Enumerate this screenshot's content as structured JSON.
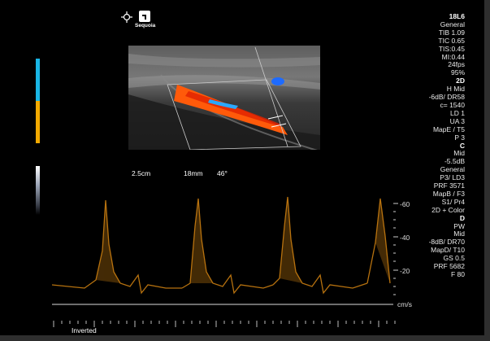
{
  "logo": {
    "brand": "Sequoia"
  },
  "params": [
    {
      "text": "18L6",
      "hdr": true
    },
    {
      "text": "General"
    },
    {
      "text": "TIB 1.09"
    },
    {
      "text": "TIC 0.65"
    },
    {
      "text": "TIS:0.45"
    },
    {
      "text": "MI:0.44"
    },
    {
      "text": "24fps"
    },
    {
      "text": "95%"
    },
    {
      "text": "2D",
      "hdr": true
    },
    {
      "text": "H Mid"
    },
    {
      "text": "-6dB/ DR58"
    },
    {
      "text": "c= 1540"
    },
    {
      "text": "LD 1"
    },
    {
      "text": "UA 3"
    },
    {
      "text": "MapE / T5"
    },
    {
      "text": "P 3"
    },
    {
      "text": "C",
      "hdr": true
    },
    {
      "text": "Mid"
    },
    {
      "text": "-5.5dB"
    },
    {
      "text": "General"
    },
    {
      "text": "P3/ LD3"
    },
    {
      "text": "PRF 3571"
    },
    {
      "text": "MapB / F3"
    },
    {
      "text": "S1/ Pr4"
    },
    {
      "text": "2D + Color"
    },
    {
      "text": "D",
      "hdr": true
    },
    {
      "text": "PW"
    },
    {
      "text": "Mid"
    },
    {
      "text": "-8dB/ DR70"
    },
    {
      "text": "MapD/ T10"
    },
    {
      "text": "GS 0.5"
    },
    {
      "text": "PRF 5682"
    },
    {
      "text": "F 80"
    }
  ],
  "doppler": {
    "gate_depth": "2.5cm",
    "gate_size": "18mm",
    "angle": "46°",
    "scale_labels": [
      "-60",
      "-40",
      "-20"
    ],
    "unit": "cm/s",
    "invert_label": "Inverted"
  },
  "colors": {
    "color_bar_top": "#19b6e6",
    "color_bar_bottom": "#f2a900",
    "spectrum": "#c07810",
    "flow": "#ff5a0a"
  }
}
